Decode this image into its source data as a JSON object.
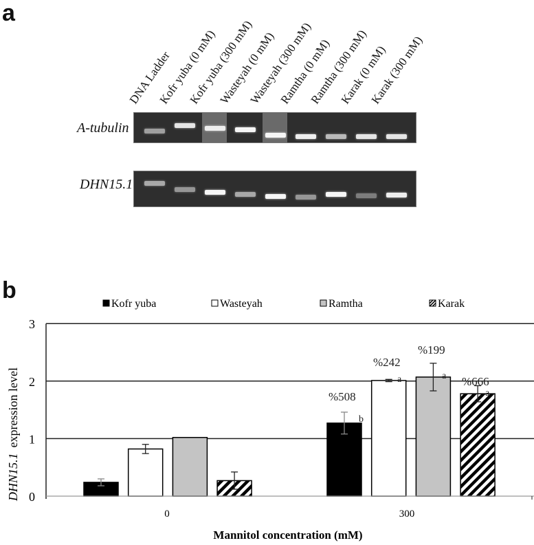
{
  "panel_a": {
    "letter": "a",
    "lanes": [
      "DNA Ladder",
      "Kofr yuba (0 mM)",
      "Kofr yuba (300 mM)",
      "Wasteyah (0 mM)",
      "Wasteyah (300 mM)",
      "Ramtha (0 mM)",
      "Ramtha (300 mM)",
      "Karak (0 mM)",
      "Karak (300 mM)"
    ],
    "genes": [
      {
        "name": "A-tubulin",
        "band_y": [
          27,
          19,
          23,
          25,
          33,
          35,
          35,
          35,
          35
        ],
        "band_brightness": [
          0.45,
          0.85,
          0.9,
          0.95,
          0.95,
          0.9,
          0.6,
          0.85,
          0.85
        ],
        "smear": [
          0,
          0,
          1,
          0,
          1,
          0,
          0,
          0,
          0
        ]
      },
      {
        "name": "DHN15.1",
        "band_y": [
          18,
          27,
          31,
          34,
          37,
          38,
          34,
          36,
          35
        ],
        "band_brightness": [
          0.5,
          0.4,
          0.95,
          0.5,
          0.95,
          0.4,
          0.95,
          0.25,
          0.9
        ],
        "smear": [
          0,
          0,
          0,
          0,
          0,
          0,
          0,
          0,
          0
        ]
      }
    ]
  },
  "panel_b": {
    "letter": "b",
    "legend": [
      {
        "label": "Kofr yuba",
        "swatch": "solid-black"
      },
      {
        "label": "Wasteyah",
        "swatch": "white"
      },
      {
        "label": "Ramtha",
        "swatch": "light-gray"
      },
      {
        "label": "Karak",
        "swatch": "diagonal-hatch"
      }
    ],
    "ylabel_gene": "DHN15.1",
    "ylabel_rest": "expression level",
    "xlabel": "Mannitol concentration  (mM)",
    "yticks": [
      "0",
      "1",
      "2",
      "3"
    ],
    "xticks": [
      "0",
      "300"
    ],
    "annotations": [
      {
        "group": "300",
        "series": "Kofr yuba",
        "percent": "%508",
        "letter": "b"
      },
      {
        "group": "300",
        "series": "Wasteyah",
        "percent": "%242",
        "letter": "a"
      },
      {
        "group": "300",
        "series": "Ramtha",
        "percent": "%199",
        "letter": "a"
      },
      {
        "group": "300",
        "series": "Karak",
        "percent": "%666",
        "letter": "a"
      }
    ]
  },
  "chart_data": {
    "type": "bar",
    "title": "",
    "xlabel": "Mannitol concentration (mM)",
    "ylabel": "DHN15.1 expression level",
    "categories": [
      "0",
      "300"
    ],
    "ylim": [
      0,
      3
    ],
    "grid": "horizontal at 1, 2, 3",
    "legend_position": "top",
    "series": [
      {
        "name": "Kofr yuba",
        "values": [
          0.24,
          1.27
        ],
        "errors": [
          0.06,
          0.19
        ],
        "fill": "#000000"
      },
      {
        "name": "Wasteyah",
        "values": [
          0.82,
          2.01
        ],
        "errors": [
          0.08,
          0.02
        ],
        "fill": "#ffffff"
      },
      {
        "name": "Ramtha",
        "values": [
          1.02,
          2.07
        ],
        "errors": [
          0.0,
          0.24
        ],
        "fill": "#c4c4c4"
      },
      {
        "name": "Karak",
        "values": [
          0.27,
          1.78
        ],
        "errors": [
          0.15,
          0.14
        ],
        "fill": "hatch"
      }
    ],
    "annotations": [
      "%508 b",
      "%242 a",
      "%199 a",
      "%666 a"
    ]
  }
}
